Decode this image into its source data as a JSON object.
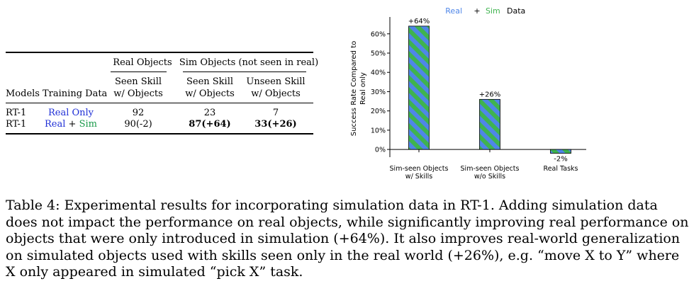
{
  "table": {
    "group_headers": [
      "Real Objects",
      "Sim Objects (not seen in real)"
    ],
    "col_headers": {
      "models": "Models",
      "training_data": "Training Data",
      "seen_real": [
        "Seen Skill",
        "w/ Objects"
      ],
      "seen_sim": [
        "Seen Skill",
        "w/ Objects"
      ],
      "unseen_sim": [
        "Unseen Skill",
        "w/ Objects"
      ]
    },
    "rows": [
      {
        "model": "RT-1",
        "training": "Real Only",
        "seen_real": "92",
        "seen_sim": "23",
        "unseen_sim": "7"
      },
      {
        "model": "RT-1",
        "training_real": "Real",
        "training_plus": " + ",
        "training_sim": "Sim",
        "seen_real": "90(-2)",
        "seen_sim": "87(+64)",
        "unseen_sim": "33(+26)"
      }
    ]
  },
  "chart_data": {
    "type": "bar",
    "title_parts": [
      "Real",
      "+",
      "Sim",
      "Data"
    ],
    "ylabel": [
      "Success Rate Compared to",
      "Real only"
    ],
    "categories": [
      [
        "Sim-seen Objects",
        "w/ Skills"
      ],
      [
        "Sim-seen Objects",
        "w/o Skills"
      ],
      [
        "Real Tasks"
      ]
    ],
    "values": [
      64,
      26,
      -2
    ],
    "value_labels": [
      "+64%",
      "+26%",
      "-2%"
    ],
    "yticks": [
      0,
      10,
      20,
      30,
      40,
      50,
      60
    ],
    "ytick_labels": [
      "0%",
      "10%",
      "20%",
      "30%",
      "40%",
      "50%",
      "60%"
    ],
    "ylim": [
      -4,
      68
    ],
    "colors": {
      "real": "#4f86e8",
      "sim": "#3fb34f"
    }
  },
  "caption": {
    "lines": [
      "Table 4: Experimental results for incorporating simulation data in RT-1.  Adding simulation data",
      "does not impact the performance on real objects, while significantly improving real performance on",
      "objects that were only introduced in simulation (+64%). It also improves real-world generalization",
      "on simulated objects used with skills seen only in the real world (+26%), e.g. “move X to Y” where",
      "X only appeared in simulated “pick X” task."
    ]
  }
}
